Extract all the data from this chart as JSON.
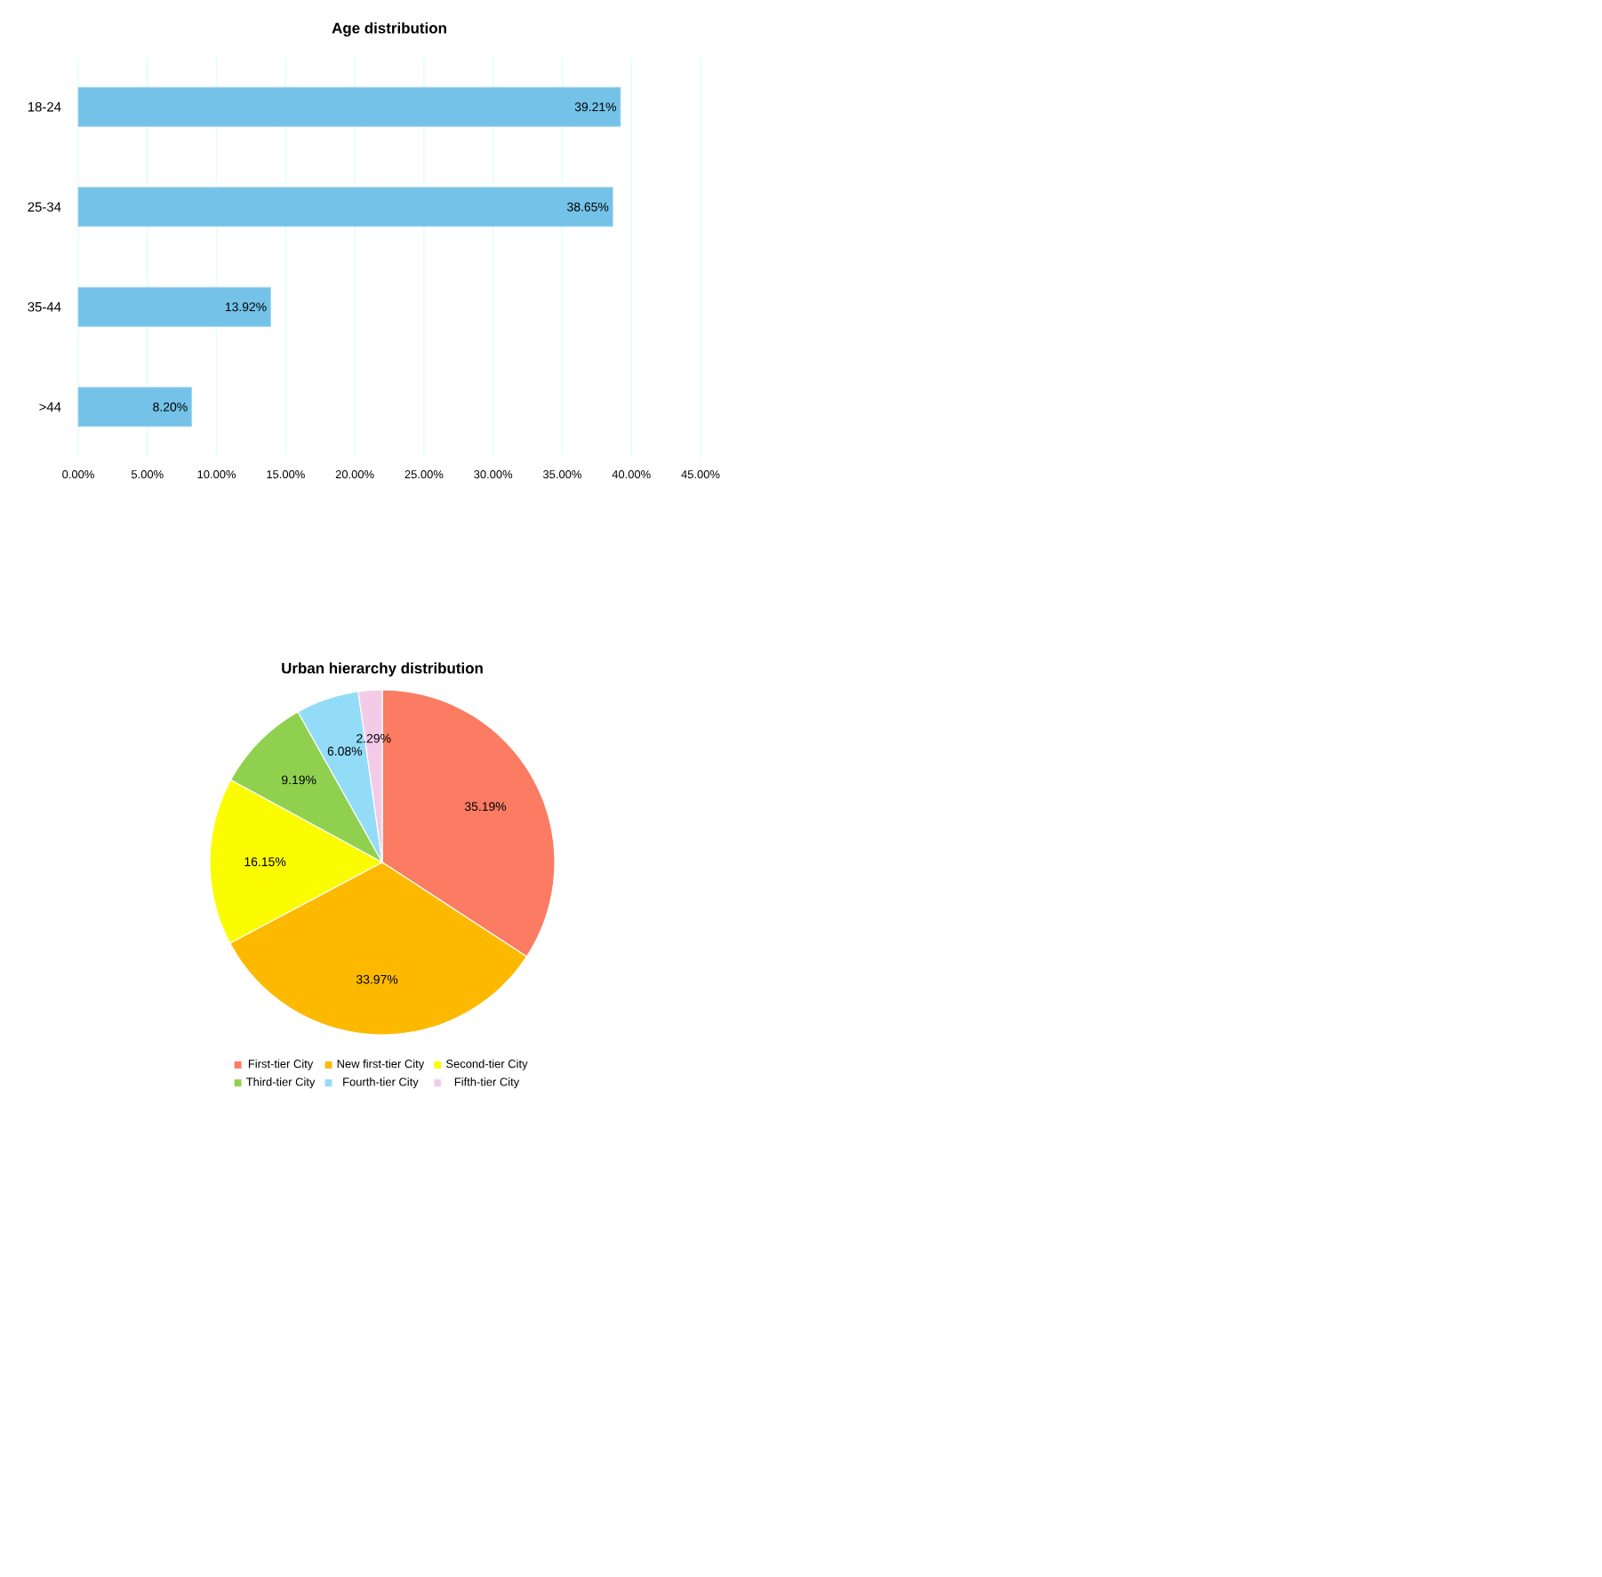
{
  "chart_data": [
    {
      "type": "bar",
      "orientation": "horizontal",
      "title": "Age distribution",
      "categories": [
        "18-24",
        "25-34",
        "35-44",
        ">44"
      ],
      "values": [
        39.21,
        38.65,
        13.92,
        8.2
      ],
      "value_labels": [
        "39.21%",
        "38.65%",
        "13.92%",
        "8.20%"
      ],
      "color": "#74c2e8",
      "xlim": [
        0,
        45
      ],
      "xticks": [
        {
          "value": 0,
          "label": "0.00%"
        },
        {
          "value": 5,
          "label": "5.00%"
        },
        {
          "value": 10,
          "label": "10.00%"
        },
        {
          "value": 15,
          "label": "15.00%"
        },
        {
          "value": 20,
          "label": "20.00%"
        },
        {
          "value": 25,
          "label": "25.00%"
        },
        {
          "value": 30,
          "label": "30.00%"
        },
        {
          "value": 35,
          "label": "35.00%"
        },
        {
          "value": 40,
          "label": "40.00%"
        },
        {
          "value": 45,
          "label": "45.00%"
        }
      ],
      "grid": "x"
    },
    {
      "type": "pie",
      "title": "Urban hierarchy distribution",
      "categories": [
        "First-tier City",
        "New first-tier City",
        "Second-tier City",
        "Third-tier City",
        "Fourth-tier City",
        "Fifth-tier City"
      ],
      "values": [
        35.19,
        33.97,
        16.15,
        9.19,
        6.08,
        2.29
      ],
      "value_labels": [
        "35.19%",
        "33.97%",
        "16.15%",
        "9.19%",
        "6.08%",
        "2.29%"
      ],
      "colors": [
        "#fb7b63",
        "#fdb900",
        "#fcfc00",
        "#8fd14f",
        "#93dcf8",
        "#f3cbe8"
      ],
      "legend": "bottom"
    }
  ]
}
